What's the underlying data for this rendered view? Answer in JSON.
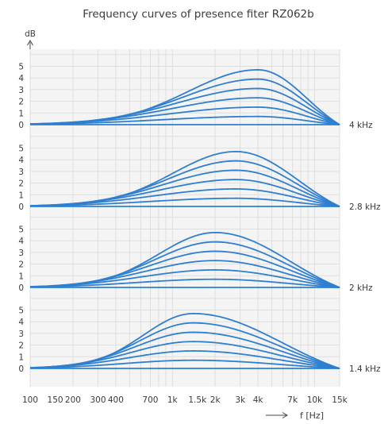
{
  "chart_data": {
    "type": "line",
    "title": "Frequency curves of presence fiter RZ062b",
    "y_unit": "dB",
    "x_axis_label": "f  [Hz]",
    "x_scale": "log",
    "x_ticks": [
      {
        "v": 100,
        "label": "100"
      },
      {
        "v": 150,
        "label": "150"
      },
      {
        "v": 200,
        "label": "200"
      },
      {
        "v": 300,
        "label": "300"
      },
      {
        "v": 400,
        "label": "400"
      },
      {
        "v": 700,
        "label": "700"
      },
      {
        "v": 1000,
        "label": "1k"
      },
      {
        "v": 1500,
        "label": "1.5k"
      },
      {
        "v": 2000,
        "label": "2k"
      },
      {
        "v": 3000,
        "label": "3k"
      },
      {
        "v": 4000,
        "label": "4k"
      },
      {
        "v": 7000,
        "label": "7k"
      },
      {
        "v": 10000,
        "label": "10k"
      },
      {
        "v": 15000,
        "label": "15k"
      }
    ],
    "y_ticks": [
      "0",
      "1",
      "2",
      "3",
      "4",
      "5"
    ],
    "ylim": [
      0,
      5.5
    ],
    "xlim": [
      100,
      15000
    ],
    "grid": true,
    "line_color": "#2f7fd0",
    "peak_levels_db": [
      0.7,
      1.5,
      2.3,
      3.1,
      3.9,
      4.7
    ],
    "panels": [
      {
        "label": "4 kHz",
        "center_hz": 4000
      },
      {
        "label": "2.8 kHz",
        "center_hz": 2800
      },
      {
        "label": "2 kHz",
        "center_hz": 2000
      },
      {
        "label": "1.4 kHz",
        "center_hz": 1400
      }
    ]
  }
}
